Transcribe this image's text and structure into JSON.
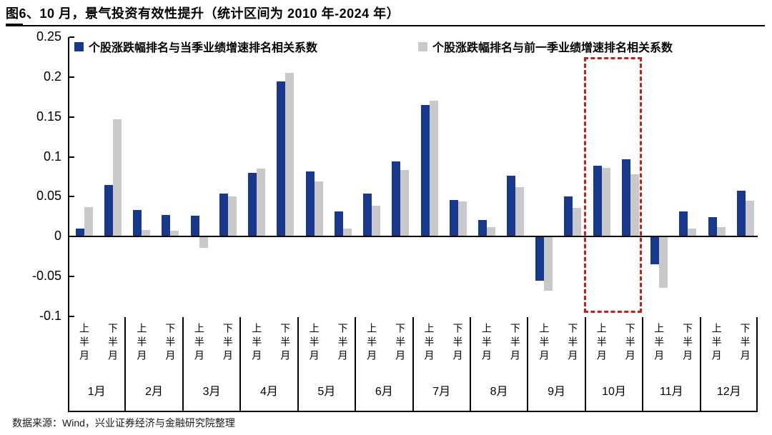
{
  "title": "图6、10 月，景气投资有效性提升（统计区间为 2010 年-2024 年）",
  "footer": "数据来源：Wind，兴业证券经济与金融研究院整理",
  "legend": {
    "items": [
      {
        "label": "个股涨跌幅排名与当季业绩增速排名相关系数",
        "color": "#17388d"
      },
      {
        "label": "个股涨跌幅排名与前一季业绩增速排名相关系数",
        "color": "#c9c9c9"
      }
    ]
  },
  "colors": {
    "bar_current": "#17388d",
    "bar_previous": "#c9c9c9",
    "highlight_red": "#c4211e",
    "axis": "#000000"
  },
  "chart_data": {
    "type": "bar",
    "title": "10月，景气投资有效性提升（统计区间为2010年-2024年）",
    "xlabel": "",
    "ylabel": "",
    "ylim": [
      -0.1,
      0.25
    ],
    "ytick_labels": [
      "0.25",
      "0.2",
      "0.15",
      "0.1",
      "0.05",
      "0",
      "-0.05",
      "-0.1"
    ],
    "grid": false,
    "legend_position": "top",
    "months": [
      "1月",
      "2月",
      "3月",
      "4月",
      "5月",
      "6月",
      "7月",
      "8月",
      "9月",
      "10月",
      "11月",
      "12月"
    ],
    "period_labels": [
      "上半月",
      "下半月"
    ],
    "categories": [
      "1月上半月",
      "1月下半月",
      "2月上半月",
      "2月下半月",
      "3月上半月",
      "3月下半月",
      "4月上半月",
      "4月下半月",
      "5月上半月",
      "5月下半月",
      "6月上半月",
      "6月下半月",
      "7月上半月",
      "7月下半月",
      "8月上半月",
      "8月下半月",
      "9月上半月",
      "9月下半月",
      "10月上半月",
      "10月下半月",
      "11月上半月",
      "11月下半月",
      "12月上半月",
      "12月下半月"
    ],
    "series": [
      {
        "name": "个股涨跌幅排名与当季业绩增速排名相关系数",
        "color": "#17388d",
        "values": [
          0.01,
          0.065,
          0.033,
          0.027,
          0.026,
          0.054,
          0.08,
          0.195,
          0.082,
          0.031,
          0.054,
          0.094,
          0.165,
          0.046,
          0.021,
          0.076,
          -0.056,
          0.05,
          0.089,
          0.097,
          -0.035,
          0.031,
          0.024,
          0.057
        ]
      },
      {
        "name": "个股涨跌幅排名与前一季业绩增速排名相关系数",
        "color": "#c9c9c9",
        "values": [
          0.037,
          0.147,
          0.008,
          0.007,
          -0.014,
          0.05,
          0.085,
          0.205,
          0.069,
          0.01,
          0.039,
          0.083,
          0.17,
          0.044,
          0.012,
          0.062,
          -0.068,
          0.036,
          0.086,
          0.078,
          -0.065,
          0.01,
          0.012,
          0.045
        ]
      }
    ],
    "highlight": {
      "month": "10月",
      "style": "red-dashed-box"
    }
  }
}
